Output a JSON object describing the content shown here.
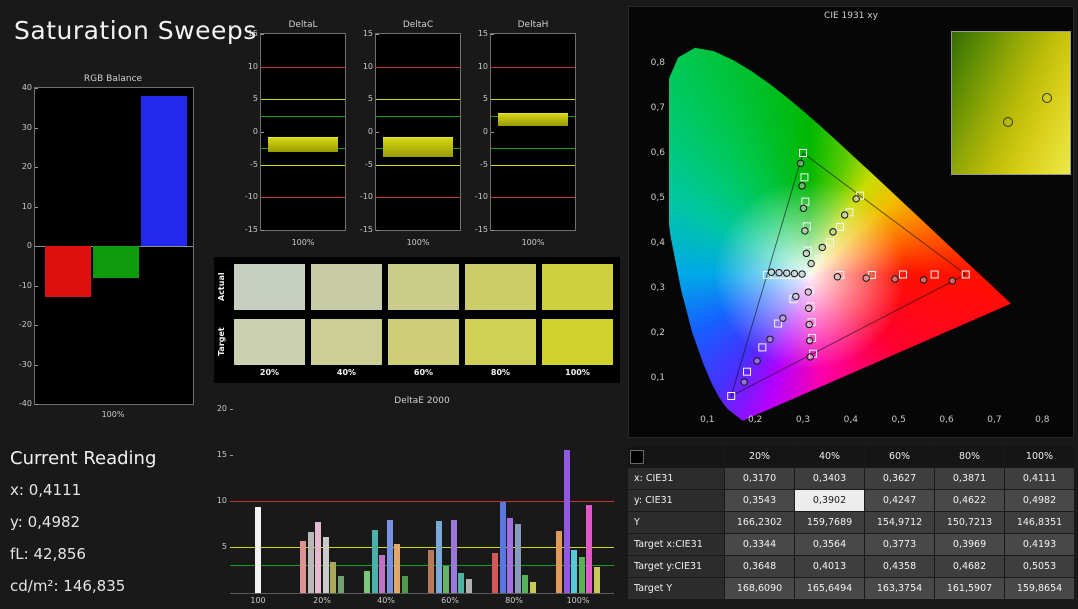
{
  "page": {
    "title": "Saturation Sweeps"
  },
  "colors": {
    "limit_red": "#c23535",
    "limit_yellow": "#d6d600",
    "limit_green": "#13a013",
    "bar_yellow": "#b2b206"
  },
  "rgb_balance": {
    "title": "RGB Balance",
    "x_label": "100%",
    "ylim": [
      -40,
      40
    ],
    "y_ticks": [
      "40",
      "30",
      "20",
      "10",
      "0",
      "-10",
      "-20",
      "-30",
      "-40"
    ],
    "bars": [
      {
        "name": "red",
        "color": "#e01010",
        "value": -13
      },
      {
        "name": "green",
        "color": "#0e9b0e",
        "value": -8
      },
      {
        "name": "blue",
        "color": "#2428ee",
        "value": 38
      }
    ]
  },
  "delta_axis": {
    "ylim": [
      -15,
      15
    ],
    "y_ticks": [
      "15",
      "10",
      "5",
      "0",
      "-5",
      "-10",
      "-15"
    ],
    "limits": {
      "red": 10,
      "yellow": 5,
      "green": 2.5
    }
  },
  "delta_charts": [
    {
      "title": "DeltaL",
      "x_label": "100%",
      "bar_from": -0.8,
      "bar_to": -2.9
    },
    {
      "title": "DeltaC",
      "x_label": "100%",
      "bar_from": -0.8,
      "bar_to": -3.7
    },
    {
      "title": "DeltaH",
      "x_label": "100%",
      "bar_from": 1.1,
      "bar_to": 2.9
    }
  ],
  "swatch_panel": {
    "row_labels": [
      "Actual",
      "Target"
    ],
    "col_labels": [
      "20%",
      "40%",
      "60%",
      "80%",
      "100%"
    ],
    "actual_colors": [
      "#c7d0c3",
      "#c8cca6",
      "#cacc8a",
      "#cccd69",
      "#ced03e"
    ],
    "target_colors": [
      "#cbd1b1",
      "#ccce93",
      "#cecf76",
      "#cfd055",
      "#d1d22b"
    ]
  },
  "deltae2000": {
    "title": "DeltaE 2000",
    "ylim": [
      0,
      20
    ],
    "y_ticks": [
      "20",
      "15",
      "10",
      "5"
    ],
    "limits": {
      "red": 10,
      "yellow": 5,
      "green": 3
    },
    "x_labels": [
      "100",
      "20%",
      "40%",
      "60%",
      "80%",
      "100%"
    ],
    "groups": [
      {
        "label": "100",
        "bars": [
          {
            "color": "#f2f2f2",
            "value": 9.3
          }
        ]
      },
      {
        "label": "20%",
        "bars": [
          {
            "color": "#de9292",
            "value": 5.7
          },
          {
            "color": "#b9b9b9",
            "value": 6.6
          },
          {
            "color": "#e7b9d1",
            "value": 7.7
          },
          {
            "color": "#c9c9c9",
            "value": 6.1
          },
          {
            "color": "#a9a959",
            "value": 3.4
          },
          {
            "color": "#71a171",
            "value": 1.8
          }
        ]
      },
      {
        "label": "40%",
        "bars": [
          {
            "color": "#79c979",
            "value": 2.4
          },
          {
            "color": "#49b1a9",
            "value": 6.8
          },
          {
            "color": "#c171c1",
            "value": 4.1
          },
          {
            "color": "#7991e1",
            "value": 7.9
          },
          {
            "color": "#e1a969",
            "value": 5.3
          },
          {
            "color": "#519951",
            "value": 1.9
          }
        ]
      },
      {
        "label": "60%",
        "bars": [
          {
            "color": "#b97959",
            "value": 4.7
          },
          {
            "color": "#79a9d9",
            "value": 7.8
          },
          {
            "color": "#69b169",
            "value": 2.9
          },
          {
            "color": "#9979d9",
            "value": 7.9
          },
          {
            "color": "#51b1a1",
            "value": 2.2
          },
          {
            "color": "#b1b1b1",
            "value": 1.5
          }
        ]
      },
      {
        "label": "80%",
        "bars": [
          {
            "color": "#d15959",
            "value": 4.4
          },
          {
            "color": "#5979e1",
            "value": 9.9
          },
          {
            "color": "#a171e1",
            "value": 8.1
          },
          {
            "color": "#8999b9",
            "value": 7.5
          },
          {
            "color": "#59b159",
            "value": 2.0
          },
          {
            "color": "#c9c959",
            "value": 1.2
          }
        ]
      },
      {
        "label": "100%",
        "bars": [
          {
            "color": "#e19959",
            "value": 6.7
          },
          {
            "color": "#9159e1",
            "value": 15.5
          },
          {
            "color": "#59c9d9",
            "value": 4.7
          },
          {
            "color": "#59b159",
            "value": 3.9
          },
          {
            "color": "#e159c9",
            "value": 9.6
          },
          {
            "color": "#c9c959",
            "value": 2.8
          }
        ]
      }
    ]
  },
  "cie_chart": {
    "title": "CIE 1931 xy",
    "axis_tick_labels": [
      "0,1",
      "0,2",
      "0,3",
      "0,4",
      "0,5",
      "0,6",
      "0,7",
      "0,8"
    ],
    "axis_tick_values": [
      0.1,
      0.2,
      0.3,
      0.4,
      0.5,
      0.6,
      0.7,
      0.8
    ],
    "white_point": [
      0.3127,
      0.329
    ],
    "gamut_triangle": [
      [
        0.64,
        0.33
      ],
      [
        0.3,
        0.6
      ],
      [
        0.15,
        0.06
      ]
    ],
    "sweep_targets": {
      "red": [
        [
          0.378,
          0.329
        ],
        [
          0.444,
          0.329
        ],
        [
          0.509,
          0.33
        ],
        [
          0.575,
          0.33
        ],
        [
          0.64,
          0.33
        ]
      ],
      "green": [
        [
          0.31,
          0.383
        ],
        [
          0.308,
          0.437
        ],
        [
          0.305,
          0.492
        ],
        [
          0.303,
          0.546
        ],
        [
          0.3,
          0.6
        ]
      ],
      "blue": [
        [
          0.28,
          0.275
        ],
        [
          0.248,
          0.221
        ],
        [
          0.215,
          0.168
        ],
        [
          0.183,
          0.114
        ],
        [
          0.15,
          0.06
        ]
      ],
      "cyan": [
        [
          0.295,
          0.329
        ],
        [
          0.277,
          0.329
        ],
        [
          0.26,
          0.329
        ],
        [
          0.242,
          0.329
        ],
        [
          0.225,
          0.329
        ]
      ],
      "magenta": [
        [
          0.314,
          0.294
        ],
        [
          0.316,
          0.259
        ],
        [
          0.318,
          0.224
        ],
        [
          0.319,
          0.189
        ],
        [
          0.321,
          0.154
        ]
      ],
      "yellow": [
        [
          0.3344,
          0.3648
        ],
        [
          0.3564,
          0.4013
        ],
        [
          0.3773,
          0.4358
        ],
        [
          0.3969,
          0.4682
        ],
        [
          0.4193,
          0.5053
        ]
      ]
    },
    "sweep_measurements": {
      "red": [
        [
          0.372,
          0.325
        ],
        [
          0.432,
          0.322
        ],
        [
          0.492,
          0.32
        ],
        [
          0.552,
          0.318
        ],
        [
          0.612,
          0.316
        ]
      ],
      "green": [
        [
          0.307,
          0.377
        ],
        [
          0.304,
          0.427
        ],
        [
          0.301,
          0.477
        ],
        [
          0.298,
          0.527
        ],
        [
          0.295,
          0.577
        ]
      ],
      "blue": [
        [
          0.285,
          0.281
        ],
        [
          0.258,
          0.233
        ],
        [
          0.231,
          0.186
        ],
        [
          0.204,
          0.138
        ],
        [
          0.177,
          0.091
        ]
      ],
      "cyan": [
        [
          0.298,
          0.331
        ],
        [
          0.282,
          0.332
        ],
        [
          0.266,
          0.333
        ],
        [
          0.25,
          0.334
        ],
        [
          0.234,
          0.335
        ]
      ],
      "magenta": [
        [
          0.311,
          0.291
        ],
        [
          0.312,
          0.255
        ],
        [
          0.313,
          0.219
        ],
        [
          0.314,
          0.183
        ],
        [
          0.315,
          0.147
        ]
      ],
      "yellow": [
        [
          0.317,
          0.3543
        ],
        [
          0.3403,
          0.3902
        ],
        [
          0.3627,
          0.4247
        ],
        [
          0.3871,
          0.4622
        ],
        [
          0.4111,
          0.4982
        ]
      ]
    },
    "inset": {
      "circles": [
        [
          0.47,
          0.63
        ],
        [
          0.8,
          0.46
        ]
      ]
    }
  },
  "current_reading": {
    "title": "Current Reading",
    "items": [
      {
        "key": "x",
        "label": "x:",
        "value": "0,4111"
      },
      {
        "key": "y",
        "label": "y:",
        "value": "0,4982"
      },
      {
        "key": "fl",
        "label": "fL:",
        "value": "42,856"
      },
      {
        "key": "cdm2",
        "label": "cd/m²:",
        "value": "146,835"
      }
    ]
  },
  "measurement_table": {
    "columns": [
      "20%",
      "40%",
      "60%",
      "80%",
      "100%"
    ],
    "rows": [
      {
        "label": "x: CIE31",
        "values": [
          "0,3170",
          "0,3403",
          "0,3627",
          "0,3871",
          "0,4111"
        ]
      },
      {
        "label": "y: CIE31",
        "values": [
          "0,3543",
          "0,3902",
          "0,4247",
          "0,4622",
          "0,4982"
        ],
        "highlight_col": 1
      },
      {
        "label": "Y",
        "values": [
          "166,2302",
          "159,7689",
          "154,9712",
          "150,7213",
          "146,8351"
        ]
      },
      {
        "label": "Target x:CIE31",
        "values": [
          "0,3344",
          "0,3564",
          "0,3773",
          "0,3969",
          "0,4193"
        ]
      },
      {
        "label": "Target y:CIE31",
        "values": [
          "0,3648",
          "0,4013",
          "0,4358",
          "0,4682",
          "0,5053"
        ]
      },
      {
        "label": "Target Y",
        "values": [
          "168,6090",
          "165,6494",
          "163,3754",
          "161,5907",
          "159,8654"
        ]
      }
    ]
  }
}
